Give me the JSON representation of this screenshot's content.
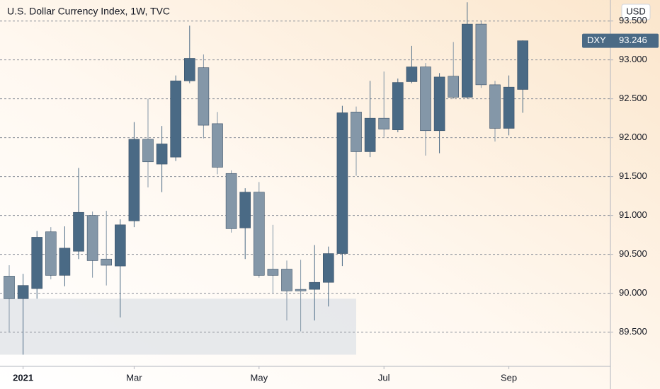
{
  "chart_data": {
    "type": "candlestick",
    "title": "U.S. Dollar Currency Index, 1W, TVC",
    "currency": "USD",
    "categories": [
      null,
      "2021",
      null,
      null,
      null,
      null,
      null,
      null,
      null,
      "Mar",
      null,
      null,
      null,
      null,
      null,
      null,
      null,
      null,
      "May",
      null,
      null,
      null,
      null,
      null,
      null,
      null,
      null,
      "Jul",
      null,
      null,
      null,
      null,
      null,
      null,
      null,
      null,
      "Sep",
      null
    ],
    "open": [
      90.22,
      89.93,
      90.06,
      90.79,
      90.23,
      90.54,
      91.0,
      90.44,
      90.35,
      90.93,
      91.98,
      91.66,
      91.75,
      92.73,
      92.9,
      92.18,
      91.54,
      90.84,
      91.3,
      90.31,
      90.31,
      90.05,
      90.05,
      90.14,
      90.51,
      92.33,
      91.82,
      92.25,
      92.1,
      92.72,
      92.91,
      92.09,
      92.79,
      92.52,
      93.46,
      92.68,
      92.12,
      92.62
    ],
    "high": [
      90.36,
      90.25,
      90.8,
      90.85,
      90.86,
      91.61,
      91.05,
      91.06,
      90.95,
      92.2,
      92.5,
      92.15,
      92.8,
      93.44,
      93.07,
      92.33,
      91.58,
      91.35,
      91.43,
      90.88,
      90.42,
      90.43,
      90.62,
      90.6,
      92.41,
      92.4,
      92.73,
      92.85,
      92.76,
      93.18,
      92.96,
      92.83,
      93.23,
      93.74,
      93.5,
      92.73,
      92.8,
      93.25
    ],
    "low": [
      89.5,
      89.21,
      89.93,
      90.18,
      90.09,
      90.44,
      90.2,
      90.1,
      89.69,
      90.85,
      91.36,
      91.3,
      91.7,
      92.7,
      91.99,
      91.53,
      90.78,
      90.44,
      90.2,
      90.0,
      89.65,
      89.51,
      89.65,
      89.83,
      90.35,
      91.51,
      91.75,
      92.01,
      92.07,
      92.7,
      91.77,
      91.8,
      92.5,
      92.5,
      92.64,
      91.95,
      92.03,
      92.32
    ],
    "close": [
      89.93,
      90.1,
      90.72,
      90.23,
      90.58,
      91.04,
      90.42,
      90.36,
      90.88,
      91.98,
      91.69,
      91.92,
      92.73,
      93.02,
      92.16,
      91.62,
      90.83,
      91.3,
      90.23,
      90.23,
      90.03,
      90.03,
      90.14,
      90.51,
      92.32,
      91.82,
      92.25,
      92.11,
      92.71,
      92.91,
      92.09,
      92.78,
      92.52,
      93.46,
      92.68,
      92.12,
      92.65,
      93.246
    ],
    "up_color": "#4a6a85",
    "down_color": "#8497a8",
    "ylim": [
      89.06,
      93.77
    ],
    "yticks": [
      {
        "value": 89.5,
        "label": "89.500"
      },
      {
        "value": 90,
        "label": "90.000"
      },
      {
        "value": 90.5,
        "label": "90.500"
      },
      {
        "value": 91,
        "label": "91.000"
      },
      {
        "value": 91.5,
        "label": "91.500"
      },
      {
        "value": 92,
        "label": "92.000"
      },
      {
        "value": 92.5,
        "label": "92.500"
      },
      {
        "value": 93,
        "label": "93.000"
      },
      {
        "value": 93.5,
        "label": "93.500"
      }
    ],
    "grid": true,
    "highlight": {
      "from": 89.21,
      "to": 89.93
    },
    "last_price": {
      "name": "DXY",
      "value": 93.246
    }
  }
}
